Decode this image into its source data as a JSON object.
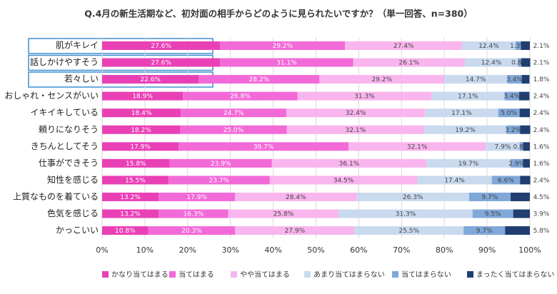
{
  "chart_data": {
    "type": "stacked-bar-horizontal",
    "title": "Q.4月の新生活期など、初対面の相手からどのように見られたいですか？（単一回答、n=380）",
    "categories": [
      "肌がキレイ",
      "話しかけやすそう",
      "若々しい",
      "おしゃれ・センスがいい",
      "イキイキしている",
      "頼りになりそう",
      "きちんとしてそう",
      "仕事ができそう",
      "知性を感じる",
      "上質なものを着ている",
      "色気を感じる",
      "かっこいい"
    ],
    "series": [
      {
        "name": "かなり当てはまる",
        "color": "#e940b6",
        "values": [
          27.6,
          27.6,
          22.6,
          18.9,
          18.4,
          18.2,
          17.9,
          15.8,
          15.5,
          13.2,
          13.2,
          10.8
        ],
        "value_labels": [
          "27.6%",
          "27.6%",
          "22.6%",
          "18.9%",
          "18.4%",
          "18.2%",
          "17.9%",
          "15.8%",
          "15.5%",
          "13.2%",
          "13.2%",
          "10.8%"
        ]
      },
      {
        "name": "当てはまる",
        "color": "#f26ad8",
        "values": [
          29.2,
          31.1,
          28.2,
          26.8,
          24.7,
          25.0,
          39.7,
          23.9,
          23.7,
          17.9,
          16.3,
          20.3
        ],
        "value_labels": [
          "29.2%",
          "31.1%",
          "28.2%",
          "26.8%",
          "24.7%",
          "25.0%",
          "39.7%",
          "23.9%",
          "23.7%",
          "17.9%",
          "16.3%",
          "20.3%"
        ]
      },
      {
        "name": "やや当てはまる",
        "color": "#f9b5ee",
        "values": [
          27.4,
          26.1,
          29.2,
          31.3,
          32.4,
          32.1,
          32.1,
          36.1,
          34.5,
          28.4,
          25.8,
          27.9
        ],
        "value_labels": [
          "27.4%",
          "26.1%",
          "29.2%",
          "31.3%",
          "32.4%",
          "32.1%",
          "32.1%",
          "36.1%",
          "34.5%",
          "28.4%",
          "25.8%",
          "27.9%"
        ]
      },
      {
        "name": "あまり当てはまらない",
        "color": "#c9daef",
        "values": [
          12.4,
          12.4,
          14.7,
          17.1,
          17.1,
          19.2,
          7.9,
          19.7,
          17.4,
          26.3,
          31.3,
          25.5
        ],
        "value_labels": [
          "12.4%",
          "12.4%",
          "14.7%",
          "17.1%",
          "17.1%",
          "19.2%",
          "7.9%",
          "19.7%",
          "17.4%",
          "26.3%",
          "31.3%",
          "25.5%"
        ]
      },
      {
        "name": "当てはまらない",
        "color": "#80a8d9",
        "values": [
          1.3,
          0.8,
          3.4,
          3.4,
          5.0,
          3.2,
          0.8,
          2.9,
          6.6,
          9.7,
          9.5,
          9.7
        ],
        "value_labels": [
          "1.3%",
          "0.8%",
          "3.4%",
          "3.4%",
          "5.0%",
          "3.2%",
          "0.8%",
          "2.9%",
          "6.6%",
          "9.7%",
          "9.5%",
          "9.7%"
        ]
      },
      {
        "name": "まったく当てはまらない",
        "color": "#203f70",
        "values": [
          2.1,
          2.1,
          1.8,
          2.4,
          2.4,
          2.4,
          1.6,
          1.6,
          2.4,
          4.5,
          3.9,
          5.8
        ],
        "value_labels": [
          "2.1%",
          "2.1%",
          "1.8%",
          "2.4%",
          "2.4%",
          "2.4%",
          "1.6%",
          "1.6%",
          "2.4%",
          "4.5%",
          "3.9%",
          "5.8%"
        ]
      }
    ],
    "xlim": [
      0,
      100
    ],
    "xticks": [
      {
        "value": 0,
        "label": "0%"
      },
      {
        "value": 10,
        "label": "10%"
      },
      {
        "value": 20,
        "label": "20%"
      },
      {
        "value": 30,
        "label": "30%"
      },
      {
        "value": 40,
        "label": "40%"
      },
      {
        "value": 50,
        "label": "50%"
      },
      {
        "value": 60,
        "label": "60%"
      },
      {
        "value": 70,
        "label": "70%"
      },
      {
        "value": 80,
        "label": "80%"
      },
      {
        "value": 90,
        "label": "90%"
      },
      {
        "value": 100,
        "label": "100%"
      }
    ],
    "grid": true
  }
}
